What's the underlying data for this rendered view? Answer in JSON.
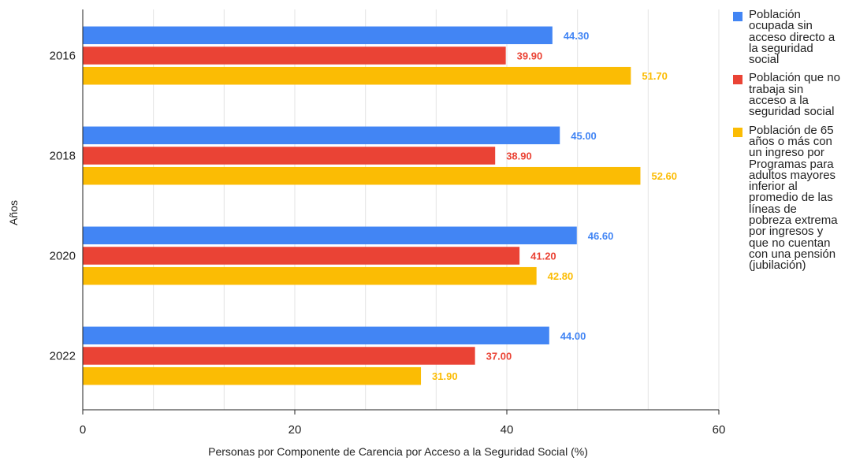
{
  "chart_data": {
    "type": "bar",
    "orientation": "horizontal",
    "categories": [
      "2016",
      "2018",
      "2020",
      "2022"
    ],
    "series": [
      {
        "name": "Población ocupada sin acceso directo a la seguridad social",
        "color": "#4285F4",
        "values": [
          44.3,
          45.0,
          46.6,
          44.0
        ]
      },
      {
        "name": "Población que no trabaja sin acceso a la seguridad social",
        "color": "#EA4335",
        "values": [
          39.9,
          38.9,
          41.2,
          37.0
        ]
      },
      {
        "name": "Población de 65 años o más con un ingreso por Programas para adultos mayores inferior al promedio de las líneas de pobreza extrema por ingresos  y que no cuentan con una pensión (jubilación)",
        "color": "#FBBC04",
        "values": [
          51.7,
          52.6,
          42.8,
          31.9
        ]
      }
    ],
    "data_labels": [
      [
        "44.30",
        "45.00",
        "46.60",
        "44.00"
      ],
      [
        "39.90",
        "38.90",
        "41.20",
        "37.00"
      ],
      [
        "51.70",
        "52.60",
        "42.80",
        "31.90"
      ]
    ],
    "xlabel": "Personas por Componente de Carencia por Acceso a la Seguridad Social (%)",
    "ylabel": "Años",
    "xlim": [
      0,
      60
    ],
    "xticks": [
      0,
      20,
      40,
      60
    ],
    "grid": true,
    "legend_position": "right"
  },
  "legend": {
    "items": [
      {
        "label": "Población\nocupada sin\nacceso directo a\nla seguridad\nsocial",
        "color": "#4285F4"
      },
      {
        "label": "Población que no\ntrabaja sin\nacceso a la\nseguridad social",
        "color": "#EA4335"
      },
      {
        "label": "Población de 65\naños o más con\nun ingreso por\nProgramas para\nadultos mayores\ninferior al\npromedio de las\nlíneas de\npobreza extrema\npor ingresos  y\nque no cuentan\ncon una pensión\n(jubilación)",
        "color": "#FBBC04"
      }
    ]
  }
}
